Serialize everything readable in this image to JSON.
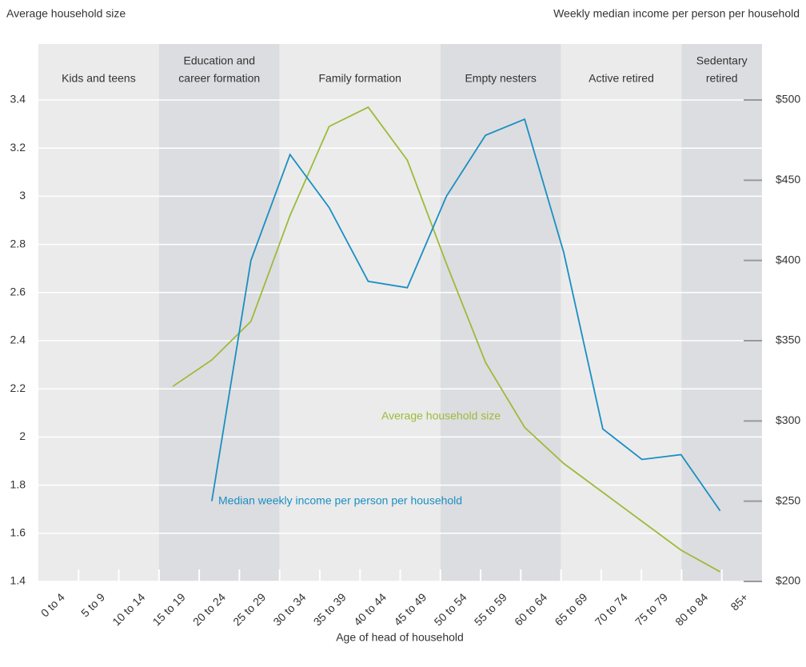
{
  "chart_data": {
    "type": "line",
    "y_label": "Average household size",
    "y2_label": "Weekly median income per person per household",
    "x_label": "Age of head of household",
    "categories": [
      "0 to 4",
      "5 to 9",
      "10 to 14",
      "15 to 19",
      "20 to 24",
      "25 to 29",
      "30 to 34",
      "35 to 39",
      "40 to 44",
      "45 to 49",
      "50 to 54",
      "55 to 59",
      "60 to 64",
      "65 to 69",
      "70 to 74",
      "75 to 79",
      "80 to 84",
      "85+"
    ],
    "stages": [
      [
        "Kids and teens"
      ],
      [
        "Education and",
        "career formation"
      ],
      [
        "Family formation"
      ],
      [
        "Empty nesters"
      ],
      [
        "Active retired"
      ],
      [
        "Sedentary",
        "retired"
      ]
    ],
    "series": [
      {
        "name": "Average household size",
        "color": "#9bbb3b",
        "axis": "y",
        "values": [
          null,
          null,
          null,
          2.21,
          2.32,
          2.48,
          2.92,
          3.29,
          3.37,
          3.15,
          2.72,
          2.31,
          2.04,
          1.89,
          1.77,
          1.65,
          1.53,
          1.44
        ]
      },
      {
        "name": "Median weekly income per person per household",
        "color": "#1a8fc2",
        "axis": "y2",
        "values": [
          null,
          null,
          null,
          null,
          250,
          400,
          466,
          433,
          387,
          383,
          440,
          478,
          488,
          405,
          295,
          276,
          279,
          244
        ]
      }
    ],
    "ylim": [
      1.4,
      3.4
    ],
    "yticks": [
      1.4,
      1.6,
      1.8,
      2.0,
      2.2,
      2.4,
      2.6,
      2.8,
      3.0,
      3.2,
      3.4
    ],
    "y2lim": [
      200,
      500
    ],
    "y2ticks": [
      {
        "value": 200,
        "label": "$200"
      },
      {
        "value": 250,
        "label": "$250"
      },
      {
        "value": 300,
        "label": "$300"
      },
      {
        "value": 350,
        "label": "$350"
      },
      {
        "value": 400,
        "label": "$400"
      },
      {
        "value": 450,
        "label": "$450"
      },
      {
        "value": 500,
        "label": "$500"
      }
    ],
    "grid": true
  }
}
